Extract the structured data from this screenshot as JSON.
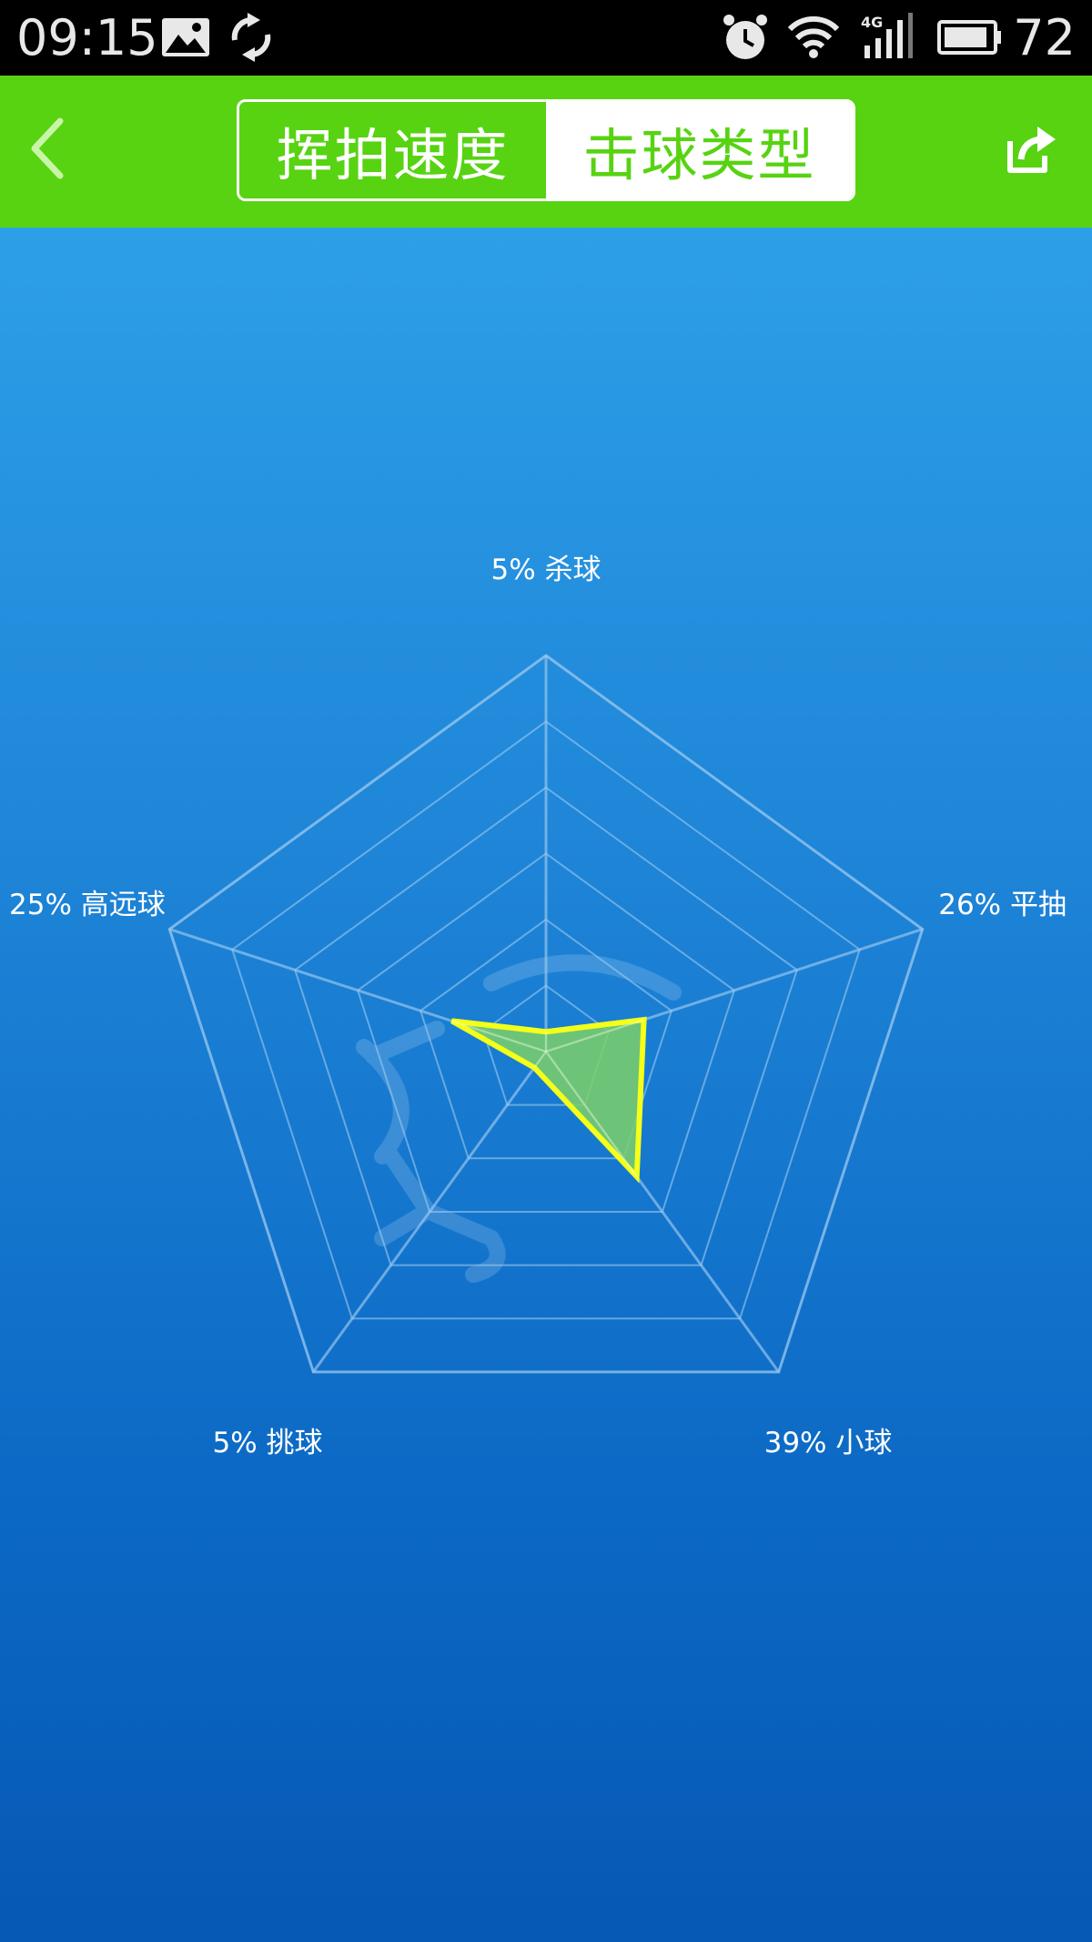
{
  "status_bar": {
    "time": "09:15",
    "battery": "72",
    "icons": [
      "image-icon",
      "sync-icon",
      "alarm-icon",
      "wifi-icon",
      "signal-4g-icon",
      "battery-icon"
    ]
  },
  "header": {
    "tabs": [
      {
        "label": "挥拍速度",
        "active": false
      },
      {
        "label": "击球类型",
        "active": true
      }
    ],
    "icons": [
      "back-arrow-icon",
      "share-icon"
    ],
    "colors": {
      "accent": "#57d312"
    }
  },
  "chart_data": {
    "type": "radar",
    "categories": [
      "杀球",
      "平抽",
      "小球",
      "挑球",
      "高远球"
    ],
    "values": [
      5,
      26,
      39,
      5,
      25
    ],
    "labels": [
      "5% 杀球",
      "26% 平抽",
      "39% 小球",
      "5% 挑球",
      "25% 高远球"
    ],
    "max": 100,
    "rings": 6,
    "colors": {
      "stroke": "#f4ff1a",
      "fill": "#7cd068",
      "grid": "#9cc9f0"
    }
  }
}
